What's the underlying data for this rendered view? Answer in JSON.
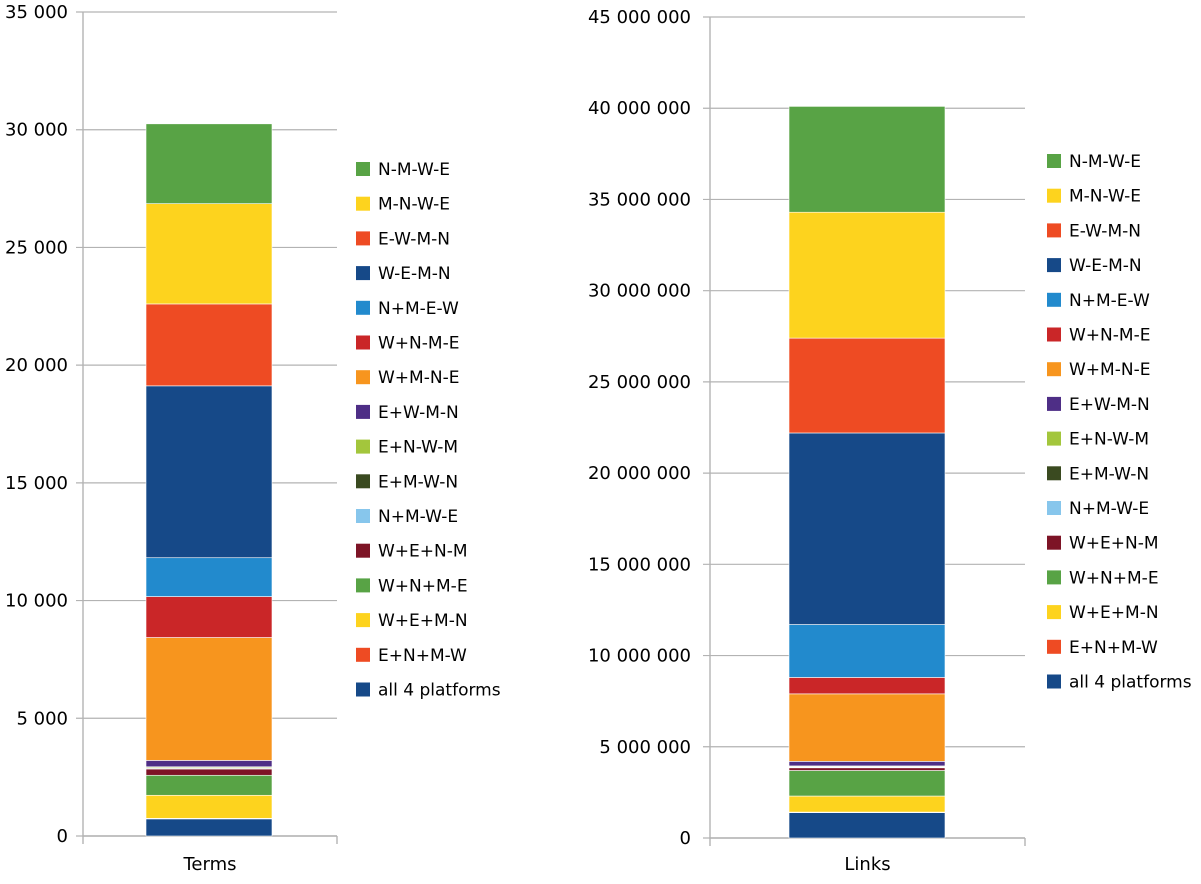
{
  "colors": {
    "N-M-W-E": "#58a345",
    "M-N-W-E": "#fdd31e",
    "E-W-M-N": "#ee4b23",
    "W-E-M-N": "#164988",
    "N+M-E-W": "#228acd",
    "W+N-M-E": "#ca2628",
    "W+M-N-E": "#f7951e",
    "E+W-M-N": "#4e2e86",
    "E+N-W-M": "#a3c63c",
    "E+M-W-N": "#3a4a20",
    "N+M-W-E": "#87c6ec",
    "W+E+N-M": "#7d1426",
    "W+N+M-E": "#58a345",
    "W+E+M-N": "#fdd31e",
    "E+N+M-W": "#ee4b23",
    "all 4 platforms": "#164988"
  },
  "chart_data": [
    {
      "type": "bar",
      "stacked": true,
      "categories": [
        "Terms"
      ],
      "ylim": [
        0,
        35000
      ],
      "yticks": [
        0,
        5000,
        10000,
        15000,
        20000,
        25000,
        30000,
        35000
      ],
      "ytick_labels": [
        "0",
        "5 000",
        "10 000",
        "15 000",
        "20 000",
        "25 000",
        "30 000",
        "35 000"
      ],
      "grid": true,
      "legend_position": "right",
      "series": [
        {
          "name": "all 4 platforms",
          "values": [
            730
          ]
        },
        {
          "name": "E+N+M-W",
          "values": [
            20
          ]
        },
        {
          "name": "W+E+M-N",
          "values": [
            980
          ]
        },
        {
          "name": "W+N+M-E",
          "values": [
            850
          ]
        },
        {
          "name": "W+E+N-M",
          "values": [
            270
          ]
        },
        {
          "name": "N+M-W-E",
          "values": [
            20
          ]
        },
        {
          "name": "E+M-W-N",
          "values": [
            30
          ]
        },
        {
          "name": "E+N-W-M",
          "values": [
            40
          ]
        },
        {
          "name": "E+W-M-N",
          "values": [
            270
          ]
        },
        {
          "name": "W+M-N-E",
          "values": [
            5220
          ]
        },
        {
          "name": "W+N-M-E",
          "values": [
            1740
          ]
        },
        {
          "name": "N+M-E-W",
          "values": [
            1650
          ]
        },
        {
          "name": "W-E-M-N",
          "values": [
            7300
          ]
        },
        {
          "name": "E-W-M-N",
          "values": [
            3480
          ]
        },
        {
          "name": "M-N-W-E",
          "values": [
            4260
          ]
        },
        {
          "name": "N-M-W-E",
          "values": [
            3390
          ]
        }
      ]
    },
    {
      "type": "bar",
      "stacked": true,
      "categories": [
        "Links"
      ],
      "ylim": [
        0,
        45000000
      ],
      "yticks": [
        0,
        5000000,
        10000000,
        15000000,
        20000000,
        25000000,
        30000000,
        35000000,
        40000000,
        45000000
      ],
      "ytick_labels": [
        "0",
        "5 000 000",
        "10 000 000",
        "15 000 000",
        "20 000 000",
        "25 000 000",
        "30 000 000",
        "35 000 000",
        "40 000 000",
        "45 000 000"
      ],
      "grid": true,
      "legend_position": "right",
      "series": [
        {
          "name": "all 4 platforms",
          "values": [
            1400000
          ]
        },
        {
          "name": "E+N+M-W",
          "values": [
            20000
          ]
        },
        {
          "name": "W+E+M-N",
          "values": [
            880000
          ]
        },
        {
          "name": "W+N+M-E",
          "values": [
            1400000
          ]
        },
        {
          "name": "W+E+N-M",
          "values": [
            150000
          ]
        },
        {
          "name": "N+M-W-E",
          "values": [
            30000
          ]
        },
        {
          "name": "E+M-W-N",
          "values": [
            30000
          ]
        },
        {
          "name": "E+N-W-M",
          "values": [
            40000
          ]
        },
        {
          "name": "E+W-M-N",
          "values": [
            250000
          ]
        },
        {
          "name": "W+M-N-E",
          "values": [
            3700000
          ]
        },
        {
          "name": "W+N-M-E",
          "values": [
            900000
          ]
        },
        {
          "name": "N+M-E-W",
          "values": [
            2900000
          ]
        },
        {
          "name": "W-E-M-N",
          "values": [
            10500000
          ]
        },
        {
          "name": "E-W-M-N",
          "values": [
            5200000
          ]
        },
        {
          "name": "M-N-W-E",
          "values": [
            6900000
          ]
        },
        {
          "name": "N-M-W-E",
          "values": [
            5800000
          ]
        }
      ]
    }
  ],
  "legend_order": [
    "N-M-W-E",
    "M-N-W-E",
    "E-W-M-N",
    "W-E-M-N",
    "N+M-E-W",
    "W+N-M-E",
    "W+M-N-E",
    "E+W-M-N",
    "E+N-W-M",
    "E+M-W-N",
    "N+M-W-E",
    "W+E+N-M",
    "W+N+M-E",
    "W+E+M-N",
    "E+N+M-W",
    "all 4 platforms"
  ]
}
